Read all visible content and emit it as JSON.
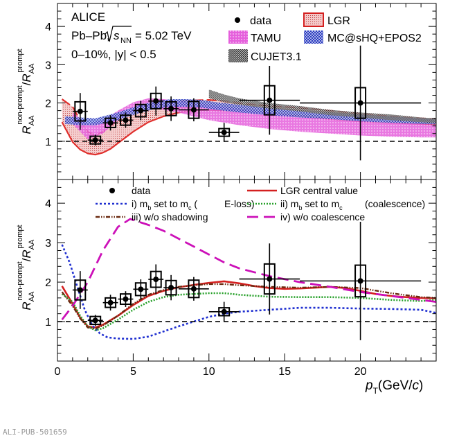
{
  "footer": "ALI-PUB-501659",
  "chart_data": [
    {
      "type": "line",
      "panel": "top",
      "text": {
        "experiment": "ALICE",
        "system_pre": "Pb–Pb,",
        "energy": "= 5.02 TeV",
        "centrality": "0–10%, |y| < 0.5"
      },
      "ylim": [
        0,
        4.6
      ],
      "yticks": [
        1,
        2,
        3,
        4
      ],
      "xlim": [
        0,
        25
      ],
      "legend": [
        {
          "key": "data",
          "label": "data"
        },
        {
          "key": "lgr",
          "label": "LGR"
        },
        {
          "key": "tamu",
          "label": "TAMU"
        },
        {
          "key": "mc",
          "label": "MC@sHQ+EPOS2"
        },
        {
          "key": "cujet",
          "label": "CUJET3.1"
        }
      ],
      "data_points": [
        {
          "x": 1.5,
          "y": 1.78,
          "xerr": 0.5,
          "stat": 0.48,
          "sys": 0.25
        },
        {
          "x": 2.5,
          "y": 1.03,
          "xerr": 0.5,
          "stat": 0.14,
          "sys": 0.1
        },
        {
          "x": 3.5,
          "y": 1.48,
          "xerr": 0.5,
          "stat": 0.2,
          "sys": 0.12
        },
        {
          "x": 4.5,
          "y": 1.55,
          "xerr": 0.5,
          "stat": 0.2,
          "sys": 0.13
        },
        {
          "x": 5.5,
          "y": 1.8,
          "xerr": 0.5,
          "stat": 0.25,
          "sys": 0.16
        },
        {
          "x": 6.5,
          "y": 2.05,
          "xerr": 0.5,
          "stat": 0.38,
          "sys": 0.2
        },
        {
          "x": 7.5,
          "y": 1.85,
          "xerr": 0.5,
          "stat": 0.32,
          "sys": 0.18
        },
        {
          "x": 9.0,
          "y": 1.82,
          "xerr": 1.0,
          "stat": 0.3,
          "sys": 0.22
        },
        {
          "x": 11.0,
          "y": 1.23,
          "xerr": 1.0,
          "stat": 0.25,
          "sys": 0.1
        },
        {
          "x": 14.0,
          "y": 2.07,
          "xerr": 2.0,
          "stat": 0.9,
          "sys": 0.38
        },
        {
          "x": 20.0,
          "y": 2.0,
          "xerr": 4.0,
          "stat": 1.5,
          "sys": 0.4
        }
      ],
      "bands": [
        {
          "key": "lgr",
          "color": "#e0302d",
          "x": [
            0.3,
            1,
            1.5,
            2,
            2.5,
            3,
            3.5,
            4,
            4.5,
            5,
            6,
            7,
            8,
            9,
            10,
            11,
            12,
            14,
            16,
            18,
            20,
            22,
            24,
            25
          ],
          "upper": [
            2.1,
            1.9,
            1.55,
            1.25,
            1.15,
            1.25,
            1.4,
            1.55,
            1.7,
            1.8,
            1.95,
            2.02,
            2.05,
            2.07,
            2.08,
            2.05,
            2.0,
            1.92,
            1.88,
            1.8,
            1.72,
            1.65,
            1.6,
            1.58
          ],
          "lower": [
            1.5,
            0.98,
            0.78,
            0.68,
            0.65,
            0.7,
            0.8,
            0.95,
            1.1,
            1.25,
            1.5,
            1.65,
            1.75,
            1.8,
            1.82,
            1.8,
            1.78,
            1.72,
            1.65,
            1.58,
            1.52,
            1.48,
            1.45,
            1.44
          ]
        },
        {
          "key": "tamu",
          "color": "#e020d0",
          "x": [
            1,
            2,
            3,
            4,
            5,
            6,
            7,
            8,
            9,
            10,
            12,
            14,
            16,
            18,
            20,
            22,
            24,
            25
          ],
          "upper": [
            1.75,
            1.45,
            1.55,
            1.8,
            2.02,
            2.12,
            2.1,
            2.05,
            2.0,
            1.95,
            1.85,
            1.75,
            1.65,
            1.6,
            1.55,
            1.5,
            1.45,
            1.43
          ],
          "lower": [
            1.45,
            1.05,
            1.2,
            1.55,
            1.78,
            1.85,
            1.82,
            1.75,
            1.65,
            1.55,
            1.42,
            1.32,
            1.25,
            1.2,
            1.15,
            1.12,
            1.1,
            1.1
          ]
        },
        {
          "key": "mc",
          "color": "#2030c0",
          "x": [
            0.5,
            1.5,
            2.5,
            3.5,
            4.5,
            5.5,
            6.5,
            7.5,
            8.5,
            9.5,
            10.5,
            12,
            14,
            16,
            18,
            20,
            22,
            24,
            25
          ],
          "upper": [
            1.65,
            1.62,
            1.6,
            1.7,
            1.82,
            1.95,
            2.05,
            2.1,
            2.1,
            2.08,
            2.02,
            1.95,
            1.88,
            1.8,
            1.75,
            1.7,
            1.65,
            1.6,
            1.58
          ],
          "lower": [
            1.45,
            1.42,
            1.42,
            1.5,
            1.62,
            1.75,
            1.85,
            1.9,
            1.9,
            1.88,
            1.82,
            1.75,
            1.68,
            1.62,
            1.58,
            1.52,
            1.48,
            1.45,
            1.44
          ]
        },
        {
          "key": "cujet",
          "color": "#555555",
          "x": [
            10,
            11,
            12,
            14,
            16,
            18,
            20,
            22,
            24,
            25
          ],
          "upper": [
            2.35,
            2.22,
            2.12,
            2.0,
            1.92,
            1.82,
            1.75,
            1.7,
            1.62,
            1.6
          ],
          "lower": [
            2.12,
            2.02,
            1.95,
            1.85,
            1.78,
            1.68,
            1.62,
            1.55,
            1.5,
            1.47
          ]
        }
      ],
      "reference_y": 1
    },
    {
      "type": "line",
      "panel": "bottom",
      "ylim": [
        0,
        4.6
      ],
      "yticks": [
        1,
        2,
        3,
        4
      ],
      "xlim": [
        0,
        25
      ],
      "xticks": [
        0,
        5,
        10,
        15,
        20
      ],
      "legend": [
        {
          "key": "data",
          "label": "data"
        },
        {
          "key": "lgr_c",
          "label": "LGR central value"
        },
        {
          "key": "i",
          "label": "E-loss)"
        },
        {
          "key": "ii",
          "label": "(coalescence)"
        },
        {
          "key": "iii",
          "label": "iii) w/o shadowing"
        },
        {
          "key": "iv",
          "label": "iv) w/o coalescence"
        }
      ],
      "data_points": [
        {
          "x": 1.5,
          "y": 1.8,
          "xerr": 0.5,
          "stat": 0.48,
          "sys": 0.25
        },
        {
          "x": 2.5,
          "y": 1.03,
          "xerr": 0.5,
          "stat": 0.14,
          "sys": 0.1
        },
        {
          "x": 3.5,
          "y": 1.48,
          "xerr": 0.5,
          "stat": 0.2,
          "sys": 0.12
        },
        {
          "x": 4.5,
          "y": 1.57,
          "xerr": 0.5,
          "stat": 0.2,
          "sys": 0.13
        },
        {
          "x": 5.5,
          "y": 1.82,
          "xerr": 0.5,
          "stat": 0.25,
          "sys": 0.16
        },
        {
          "x": 6.5,
          "y": 2.07,
          "xerr": 0.5,
          "stat": 0.38,
          "sys": 0.2
        },
        {
          "x": 7.5,
          "y": 1.86,
          "xerr": 0.5,
          "stat": 0.32,
          "sys": 0.18
        },
        {
          "x": 9.0,
          "y": 1.83,
          "xerr": 1.0,
          "stat": 0.3,
          "sys": 0.22
        },
        {
          "x": 11.0,
          "y": 1.25,
          "xerr": 1.0,
          "stat": 0.25,
          "sys": 0.1
        },
        {
          "x": 14.0,
          "y": 2.08,
          "xerr": 2.0,
          "stat": 0.9,
          "sys": 0.38
        },
        {
          "x": 20.0,
          "y": 2.03,
          "xerr": 4.0,
          "stat": 1.5,
          "sys": 0.4
        }
      ],
      "series": [
        {
          "key": "lgr_c",
          "color": "#d42020",
          "dash": "",
          "width": 2.6,
          "x": [
            0.3,
            1,
            1.5,
            2,
            2.5,
            3,
            4,
            5,
            6,
            7,
            8,
            9,
            10,
            11,
            12,
            13,
            14,
            15,
            16,
            17,
            18,
            19,
            20,
            21,
            22,
            23,
            24,
            25
          ],
          "y": [
            1.9,
            1.45,
            1.1,
            0.88,
            0.85,
            0.92,
            1.15,
            1.42,
            1.65,
            1.78,
            1.87,
            1.93,
            1.98,
            2.02,
            1.97,
            1.9,
            1.85,
            1.83,
            1.84,
            1.86,
            1.88,
            1.85,
            1.78,
            1.7,
            1.65,
            1.62,
            1.6,
            1.59
          ]
        },
        {
          "key": "i",
          "color": "#1f2fd0",
          "dash": "3,3",
          "width": 2.6,
          "x": [
            0.3,
            0.8,
            1.3,
            1.8,
            2.3,
            2.8,
            3.3,
            4,
            5,
            6,
            7,
            8,
            9,
            10,
            11,
            12,
            14,
            16,
            18,
            20,
            22,
            24,
            25
          ],
          "y": [
            2.95,
            2.5,
            1.9,
            1.3,
            0.9,
            0.7,
            0.6,
            0.57,
            0.56,
            0.62,
            0.75,
            0.88,
            1.0,
            1.12,
            1.2,
            1.25,
            1.3,
            1.35,
            1.35,
            1.33,
            1.32,
            1.3,
            1.22
          ]
        },
        {
          "key": "ii",
          "color": "#27a02a",
          "dash": "2,2",
          "width": 2.6,
          "x": [
            0.3,
            1,
            1.5,
            2,
            2.5,
            3,
            4,
            5,
            6,
            7,
            8,
            9,
            10,
            11,
            12,
            14,
            16,
            18,
            20,
            22,
            24,
            25
          ],
          "y": [
            1.7,
            1.5,
            1.15,
            0.88,
            0.78,
            0.83,
            1.05,
            1.3,
            1.5,
            1.62,
            1.68,
            1.7,
            1.72,
            1.72,
            1.68,
            1.63,
            1.62,
            1.62,
            1.6,
            1.55,
            1.52,
            1.55
          ]
        },
        {
          "key": "iii",
          "color": "#6a2a10",
          "dash": "6,2,1.5,2,1.5,2",
          "width": 2.4,
          "x": [
            0.3,
            1,
            1.5,
            2,
            2.5,
            3,
            4,
            5,
            6,
            7,
            8,
            9,
            10,
            11,
            12,
            14,
            16,
            18,
            20,
            22,
            24,
            25
          ],
          "y": [
            1.75,
            1.4,
            1.08,
            0.85,
            0.82,
            0.9,
            1.15,
            1.45,
            1.68,
            1.8,
            1.88,
            1.92,
            1.95,
            1.95,
            1.92,
            1.88,
            1.86,
            1.88,
            1.85,
            1.72,
            1.62,
            1.6
          ]
        },
        {
          "key": "iv",
          "color": "#cc10b8",
          "dash": "16,8",
          "width": 2.8,
          "x": [
            0.3,
            1,
            2,
            3,
            4,
            4.8,
            6,
            7,
            8,
            9,
            10,
            11,
            12,
            14,
            16,
            18,
            20,
            22,
            24,
            25
          ],
          "y": [
            1.05,
            1.4,
            2.0,
            2.8,
            3.4,
            3.6,
            3.45,
            3.3,
            3.1,
            2.9,
            2.7,
            2.5,
            2.35,
            2.15,
            2.0,
            1.88,
            1.75,
            1.65,
            1.55,
            1.5
          ]
        }
      ],
      "reference_y": 1
    }
  ]
}
